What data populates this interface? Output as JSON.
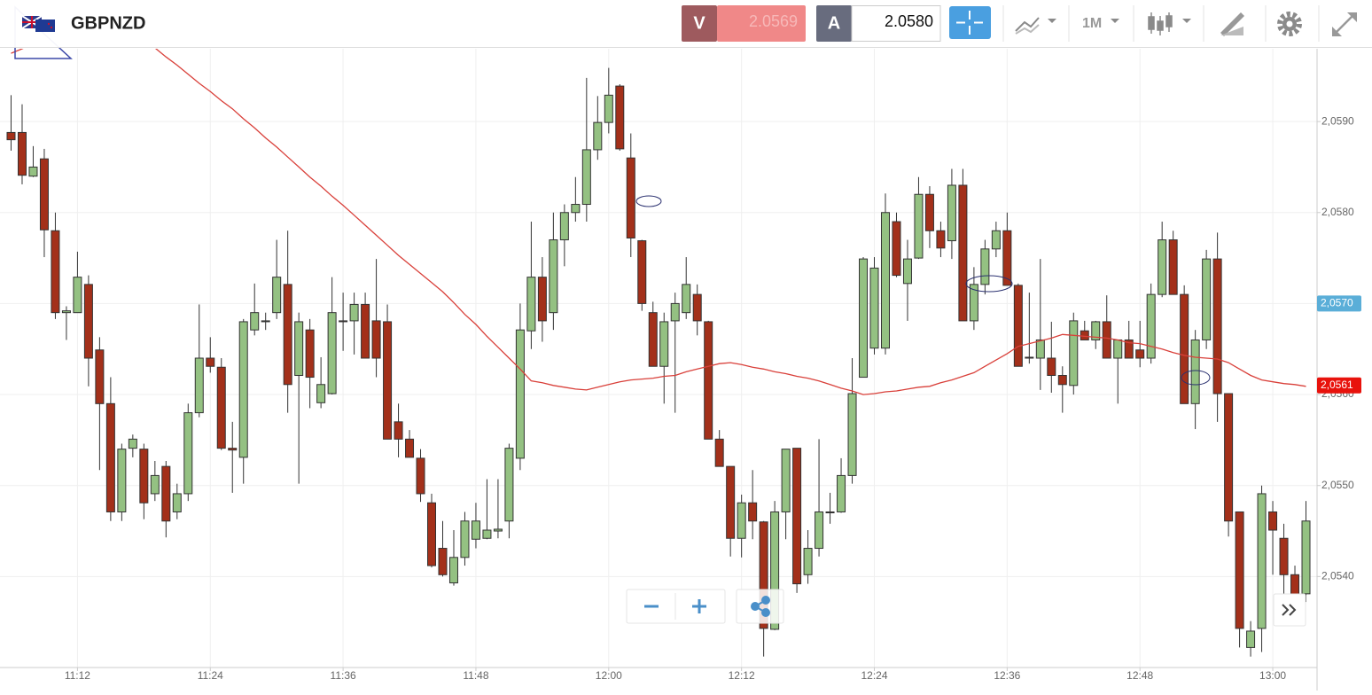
{
  "header": {
    "symbol": "GBPNZD",
    "sell_label": "V",
    "sell_price": "2.0569",
    "buy_label": "A",
    "buy_price": "2.0580",
    "timeframe": "1M"
  },
  "chart_data": {
    "type": "candlestick",
    "x": [
      "11:06",
      "11:07",
      "11:08",
      "11:09",
      "11:10",
      "11:11",
      "11:12",
      "11:13",
      "11:14",
      "11:15",
      "11:16",
      "11:17",
      "11:18",
      "11:19",
      "11:20",
      "11:21",
      "11:22",
      "11:23",
      "11:24",
      "11:25",
      "11:26",
      "11:27",
      "11:28",
      "11:29",
      "11:30",
      "11:31",
      "11:32",
      "11:33",
      "11:34",
      "11:35",
      "11:36",
      "11:37",
      "11:38",
      "11:39",
      "11:40",
      "11:41",
      "11:42",
      "11:43",
      "11:44",
      "11:45",
      "11:46",
      "11:47",
      "11:48",
      "11:49",
      "11:50",
      "11:51",
      "11:52",
      "11:53",
      "11:54",
      "11:55",
      "11:56",
      "11:57",
      "11:58",
      "11:59",
      "12:00",
      "12:01",
      "12:02",
      "12:03",
      "12:04",
      "12:05",
      "12:06",
      "12:07",
      "12:08",
      "12:09",
      "12:10",
      "12:11",
      "12:12",
      "12:13",
      "12:14",
      "12:15",
      "12:16",
      "12:17",
      "12:18",
      "12:19",
      "12:20",
      "12:21",
      "12:22",
      "12:23",
      "12:24",
      "12:25",
      "12:26",
      "12:27",
      "12:28",
      "12:29",
      "12:30",
      "12:31",
      "12:32",
      "12:33",
      "12:34",
      "12:35",
      "12:36",
      "12:37",
      "12:38",
      "12:39",
      "12:40",
      "12:41",
      "12:42",
      "12:43",
      "12:44",
      "12:45",
      "12:46",
      "12:47",
      "12:48",
      "12:49",
      "12:50",
      "12:51",
      "12:52",
      "12:53",
      "12:54",
      "12:55",
      "12:56",
      "12:57",
      "12:58",
      "12:59",
      "13:00",
      "13:01",
      "13:02",
      "13:03"
    ],
    "open": [
      2.05888,
      2.05888,
      2.0584,
      2.05859,
      2.0578,
      2.0569,
      2.0569,
      2.05721,
      2.05649,
      2.0559,
      2.05471,
      2.05541,
      2.0554,
      2.05491,
      2.05521,
      2.05471,
      2.05491,
      2.0558,
      2.0564,
      2.0563,
      2.05541,
      2.05531,
      2.05671,
      2.0568,
      2.0569,
      2.05721,
      2.05621,
      2.05671,
      2.05591,
      2.05601,
      2.05681,
      2.05681,
      2.05699,
      2.05681,
      2.0568,
      2.0557,
      2.05551,
      2.0553,
      2.05481,
      2.05431,
      2.05393,
      2.05421,
      2.05441,
      2.05442,
      2.0545,
      2.05461,
      2.0553,
      2.0567,
      2.05729,
      2.0569,
      2.0577,
      2.058,
      2.05809,
      2.05869,
      2.05899,
      2.05939,
      2.0586,
      2.05769,
      2.0569,
      2.05631,
      2.05681,
      2.0569,
      2.0571,
      2.0568,
      2.05551,
      2.05521,
      2.05442,
      2.05481,
      2.0546,
      2.05342,
      2.05471,
      2.05541,
      2.05402,
      2.05431,
      2.05471,
      2.05471,
      2.05511,
      2.05619,
      2.05651,
      2.05651,
      2.0579,
      2.05722,
      2.0575,
      2.0582,
      2.0578,
      2.05769,
      2.0583,
      2.05681,
      2.05721,
      2.0576,
      2.0578,
      2.0572,
      2.05641,
      2.0564,
      2.0564,
      2.05621,
      2.0561,
      2.0567,
      2.0566,
      2.0568,
      2.0564,
      2.0566,
      2.05649,
      2.0564,
      2.0571,
      2.0577,
      2.0571,
      2.0559,
      2.0566,
      2.05749,
      2.05601,
      2.05471,
      2.05322,
      2.05343,
      2.05471,
      2.05442,
      2.05402,
      2.05381
    ],
    "high": [
      2.05929,
      2.05919,
      2.05873,
      2.0587,
      2.058,
      2.05697,
      2.05757,
      2.05731,
      2.05663,
      2.05619,
      2.05546,
      2.05556,
      2.05546,
      2.05527,
      2.05527,
      2.05502,
      2.0559,
      2.05699,
      2.05663,
      2.0564,
      2.0557,
      2.05683,
      2.05722,
      2.0569,
      2.0577,
      2.0578,
      2.0569,
      2.05683,
      2.05641,
      2.05729,
      2.05712,
      2.05712,
      2.05712,
      2.05749,
      2.05699,
      2.0559,
      2.05561,
      2.0554,
      2.05491,
      2.05461,
      2.05451,
      2.05471,
      2.05481,
      2.05507,
      2.05507,
      2.05546,
      2.057,
      2.0579,
      2.05751,
      2.058,
      2.05809,
      2.05839,
      2.05948,
      2.05928,
      2.05959,
      2.05941,
      2.05887,
      2.0577,
      2.05702,
      2.0569,
      2.05712,
      2.05751,
      2.05721,
      2.05681,
      2.05561,
      2.05521,
      2.0549,
      2.05517,
      2.05461,
      2.05483,
      2.0554,
      2.05541,
      2.05451,
      2.05551,
      2.05492,
      2.0553,
      2.0564,
      2.05751,
      2.05751,
      2.05821,
      2.058,
      2.0577,
      2.05839,
      2.05829,
      2.0579,
      2.05848,
      2.05848,
      2.0574,
      2.0577,
      2.0579,
      2.058,
      2.05722,
      2.05712,
      2.05749,
      2.0568,
      2.05631,
      2.0569,
      2.05681,
      2.05681,
      2.05709,
      2.0566,
      2.05681,
      2.05681,
      2.05722,
      2.0579,
      2.0578,
      2.0572,
      2.05671,
      2.05759,
      2.05778,
      2.05601,
      2.05471,
      2.05351,
      2.055,
      2.05483,
      2.05458,
      2.05412,
      2.05483
    ],
    "low": [
      2.05868,
      2.05831,
      2.05839,
      2.05751,
      2.05683,
      2.0566,
      2.0569,
      2.05609,
      2.05517,
      2.05461,
      2.05461,
      2.05531,
      2.05463,
      2.05483,
      2.05443,
      2.05463,
      2.05483,
      2.05575,
      2.05624,
      2.05539,
      2.05492,
      2.05502,
      2.05665,
      2.05671,
      2.05683,
      2.0558,
      2.05502,
      2.05585,
      2.05585,
      2.056,
      2.05648,
      2.05644,
      2.0564,
      2.05619,
      2.05551,
      2.05531,
      2.05531,
      2.05482,
      2.0541,
      2.054,
      2.0539,
      2.05412,
      2.05431,
      2.05441,
      2.05442,
      2.05442,
      2.05517,
      2.0565,
      2.05658,
      2.05671,
      2.05741,
      2.0579,
      2.0579,
      2.05858,
      2.05887,
      2.05868,
      2.05751,
      2.05692,
      2.05631,
      2.0559,
      2.0558,
      2.05683,
      2.05665,
      2.05551,
      2.05521,
      2.05422,
      2.05421,
      2.05441,
      2.05312,
      2.05341,
      2.05441,
      2.05382,
      2.05392,
      2.05422,
      2.05458,
      2.0547,
      2.05502,
      2.05619,
      2.05644,
      2.05644,
      2.05729,
      2.05681,
      2.05749,
      2.05761,
      2.05751,
      2.05749,
      2.05681,
      2.05671,
      2.0571,
      2.05751,
      2.0572,
      2.05631,
      2.05634,
      2.05605,
      2.05602,
      2.0558,
      2.056,
      2.0566,
      2.0565,
      2.0564,
      2.0559,
      2.0564,
      2.0563,
      2.05634,
      2.05707,
      2.0571,
      2.0559,
      2.05562,
      2.0565,
      2.0557,
      2.05444,
      2.05322,
      2.05312,
      2.05317,
      2.05402,
      2.0538,
      2.05351,
      2.05372
    ],
    "close": [
      2.0588,
      2.05841,
      2.0585,
      2.05781,
      2.0569,
      2.05692,
      2.05729,
      2.0564,
      2.0559,
      2.05471,
      2.0554,
      2.05551,
      2.05481,
      2.05511,
      2.05461,
      2.05491,
      2.0558,
      2.0564,
      2.05631,
      2.05541,
      2.05539,
      2.0568,
      2.0569,
      2.05681,
      2.05729,
      2.05611,
      2.0568,
      2.05619,
      2.05611,
      2.0569,
      2.0568,
      2.05699,
      2.0564,
      2.0564,
      2.05551,
      2.05551,
      2.05531,
      2.05491,
      2.05412,
      2.05402,
      2.05421,
      2.05461,
      2.05461,
      2.05451,
      2.05452,
      2.05541,
      2.05671,
      2.05729,
      2.05681,
      2.0577,
      2.058,
      2.05809,
      2.05869,
      2.05899,
      2.05929,
      2.0587,
      2.05772,
      2.057,
      2.05631,
      2.0568,
      2.057,
      2.05721,
      2.05681,
      2.05551,
      2.05521,
      2.05442,
      2.05481,
      2.05461,
      2.05343,
      2.05471,
      2.0554,
      2.05392,
      2.05431,
      2.05471,
      2.0547,
      2.05511,
      2.05601,
      2.05749,
      2.05739,
      2.058,
      2.05731,
      2.05749,
      2.0582,
      2.0578,
      2.05761,
      2.0583,
      2.05681,
      2.05721,
      2.0576,
      2.0578,
      2.0572,
      2.05631,
      2.0564,
      2.0566,
      2.05621,
      2.05611,
      2.05681,
      2.0566,
      2.0568,
      2.0564,
      2.0566,
      2.0564,
      2.0564,
      2.0571,
      2.0577,
      2.0571,
      2.0559,
      2.0566,
      2.05749,
      2.05601,
      2.05461,
      2.05343,
      2.0534,
      2.05491,
      2.05451,
      2.05402,
      2.0538,
      2.05461
    ],
    "up_color": "#94c182",
    "down_color": "#a3301a",
    "line": {
      "color": "#d9403a",
      "values": [
        2.05975,
        2.0598,
        2.05985,
        2.05989,
        2.05992,
        2.05995,
        2.05997,
        2.05998,
        2.05998,
        2.05997,
        2.05995,
        2.05992,
        2.05988,
        2.05981,
        2.05971,
        2.05962,
        2.05952,
        2.05942,
        2.05933,
        2.05923,
        2.05914,
        2.05903,
        2.05893,
        2.05882,
        2.05872,
        2.05861,
        2.0585,
        2.05839,
        2.05829,
        2.05818,
        2.05808,
        2.05797,
        2.05786,
        2.05775,
        2.05764,
        2.05753,
        2.05743,
        2.05733,
        2.05723,
        2.05713,
        2.05701,
        2.05688,
        2.05677,
        2.05664,
        2.05652,
        2.0564,
        2.05628,
        2.05615,
        2.05613,
        2.0561,
        2.05608,
        2.05606,
        2.05605,
        2.05608,
        2.05611,
        2.05614,
        2.05616,
        2.05617,
        2.05618,
        2.0562,
        2.05621,
        2.05625,
        2.05628,
        2.05631,
        2.05634,
        2.05635,
        2.05633,
        2.0563,
        2.05628,
        2.05625,
        2.05623,
        2.0562,
        2.05618,
        2.05615,
        2.05611,
        2.05607,
        2.05604,
        2.056,
        2.05601,
        2.05603,
        2.05604,
        2.05606,
        2.05608,
        2.05609,
        2.05613,
        2.05616,
        2.0562,
        2.05624,
        2.05631,
        2.05638,
        2.05645,
        2.05653,
        2.05656,
        2.05659,
        2.05662,
        2.05666,
        2.05665,
        2.05664,
        2.05663,
        2.05662,
        2.0566,
        2.05657,
        2.05656,
        2.05653,
        2.0565,
        2.05646,
        2.05643,
        2.05641,
        2.0564,
        2.05639,
        2.05635,
        2.05628,
        2.05621,
        2.05616,
        2.05614,
        2.05612,
        2.05611,
        2.05609
      ]
    },
    "xlim": [
      "11:05",
      "13:04"
    ],
    "xticks": [
      "11:12",
      "11:24",
      "11:36",
      "11:48",
      "12:00",
      "12:12",
      "12:24",
      "12:36",
      "12:48",
      "13:00"
    ],
    "ylim": [
      2.053,
      2.0598
    ],
    "yticks": [
      {
        "value": 2.054,
        "label": "2,0540"
      },
      {
        "value": 2.055,
        "label": "2,0550"
      },
      {
        "value": 2.056,
        "label": "2,0560"
      },
      {
        "value": 2.057,
        "label": "2,0570"
      },
      {
        "value": 2.058,
        "label": "2,0580"
      },
      {
        "value": 2.059,
        "label": "2,0590"
      }
    ],
    "grid": true,
    "markers": [
      {
        "value": 2.057,
        "label": "2,0570",
        "color": "#5aaed8"
      },
      {
        "value": 2.0561,
        "label": "2,0561",
        "color": "#e8120c"
      }
    ]
  }
}
